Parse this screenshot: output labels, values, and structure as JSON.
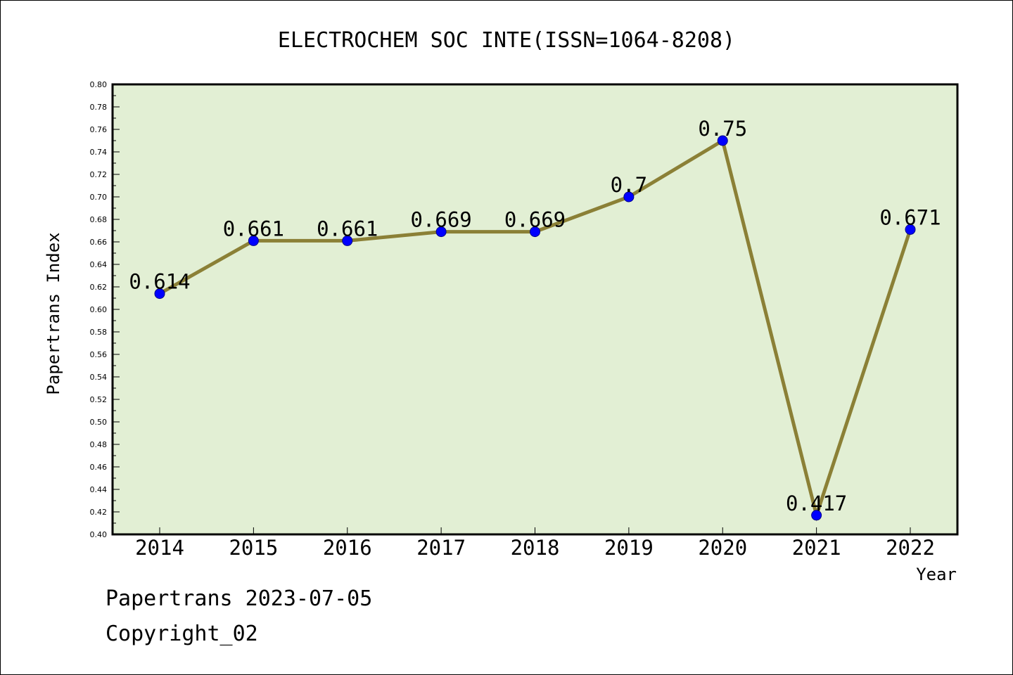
{
  "chart_data": {
    "type": "line",
    "title": "ELECTROCHEM SOC INTE(ISSN=1064-8208)",
    "xlabel": "Year",
    "ylabel": "Papertrans Index",
    "categories": [
      "2014",
      "2015",
      "2016",
      "2017",
      "2018",
      "2019",
      "2020",
      "2021",
      "2022"
    ],
    "series": [
      {
        "values": [
          0.614,
          0.661,
          0.661,
          0.669,
          0.669,
          0.7,
          0.75,
          0.417,
          0.671
        ],
        "labels": [
          "0.614",
          "0.661",
          "0.661",
          "0.669",
          "0.669",
          "0.7",
          "0.75",
          "0.417",
          "0.671"
        ],
        "line_color": "#8b8036",
        "marker_color": "#0000ff"
      }
    ],
    "ylim": [
      0.4,
      0.8
    ],
    "yticks": [
      "0.40",
      "0.42",
      "0.44",
      "0.46",
      "0.48",
      "0.50",
      "0.52",
      "0.54",
      "0.56",
      "0.58",
      "0.60",
      "0.62",
      "0.64",
      "0.66",
      "0.68",
      "0.70",
      "0.72",
      "0.74",
      "0.76",
      "0.78",
      "0.80"
    ],
    "plot_background": "#e2efd4",
    "grid": false,
    "legend": "none"
  },
  "footer": {
    "line1": "Papertrans 2023-07-05",
    "line2": "Copyright_02"
  }
}
